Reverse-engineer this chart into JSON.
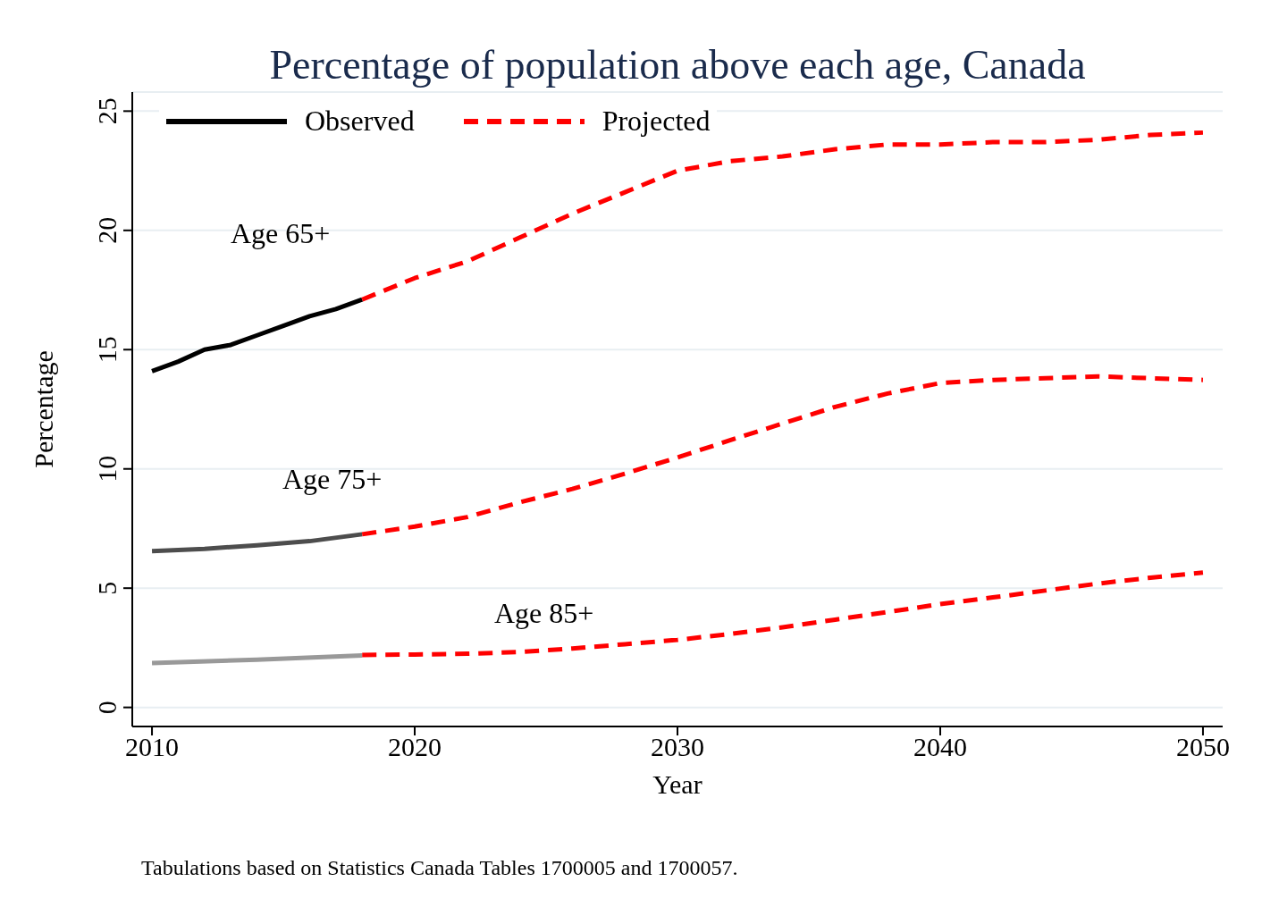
{
  "chart_data": {
    "type": "line",
    "title": "Percentage of population above each age, Canada",
    "xlabel": "Year",
    "ylabel": "Percentage",
    "xlim": [
      2009.25,
      2050.75
    ],
    "xticks": [
      2010,
      2020,
      2030,
      2040,
      2050
    ],
    "ylim": [
      -0.8,
      25.8
    ],
    "yticks": [
      0,
      5,
      10,
      15,
      20,
      25
    ],
    "grid": "y",
    "legend": "top left",
    "marker": "none",
    "series": [
      {
        "name": "Observed",
        "color": "#000000",
        "line_style": "solid",
        "x": [
          2010,
          2011,
          2012,
          2013,
          2014,
          2015,
          2016,
          2017,
          2018
        ],
        "values": [
          14.1,
          14.5,
          15.0,
          15.2,
          15.6,
          16.0,
          16.4,
          16.7,
          17.1
        ]
      },
      {
        "color": "#4d4d4d",
        "line_style": "solid",
        "x": [
          2010,
          2012,
          2014,
          2016,
          2018
        ],
        "values": [
          6.55,
          6.65,
          6.8,
          6.97,
          7.26
        ]
      },
      {
        "color": "#999999",
        "line_style": "solid",
        "x": [
          2010,
          2014,
          2018
        ],
        "values": [
          1.86,
          2.0,
          2.18
        ]
      },
      {
        "name": "Projected",
        "color": "#ff0000",
        "line_style": "dashed",
        "x": [
          2018,
          2020,
          2022,
          2024,
          2026,
          2028,
          2030,
          2032,
          2034,
          2036,
          2038,
          2040,
          2042,
          2044,
          2046,
          2048,
          2050
        ],
        "values": [
          17.1,
          18.0,
          18.7,
          19.7,
          20.7,
          21.6,
          22.5,
          22.9,
          23.1,
          23.4,
          23.6,
          23.6,
          23.7,
          23.7,
          23.8,
          24.0,
          24.1
        ]
      },
      {
        "color": "#ff0000",
        "line_style": "dashed",
        "x": [
          2018,
          2020,
          2022,
          2024,
          2026,
          2028,
          2030,
          2032,
          2034,
          2036,
          2038,
          2040,
          2042,
          2044,
          2046,
          2048,
          2050
        ],
        "values": [
          7.26,
          7.58,
          7.98,
          8.6,
          9.16,
          9.8,
          10.48,
          11.2,
          11.9,
          12.6,
          13.16,
          13.6,
          13.73,
          13.8,
          13.88,
          13.8,
          13.73
        ]
      },
      {
        "color": "#ff0000",
        "line_style": "dashed",
        "x": [
          2018,
          2020,
          2022,
          2024,
          2026,
          2028,
          2030,
          2032,
          2034,
          2036,
          2038,
          2040,
          2042,
          2044,
          2046,
          2048,
          2050
        ],
        "values": [
          2.2,
          2.22,
          2.25,
          2.32,
          2.47,
          2.65,
          2.83,
          3.08,
          3.36,
          3.68,
          4.0,
          4.33,
          4.61,
          4.9,
          5.19,
          5.44,
          5.65
        ]
      }
    ],
    "annotations": [
      "Age 65+",
      "Age 75+",
      "Age 85+",
      "Tabulations based on Statistics Canada Tables 1700005 and 1700057."
    ]
  }
}
